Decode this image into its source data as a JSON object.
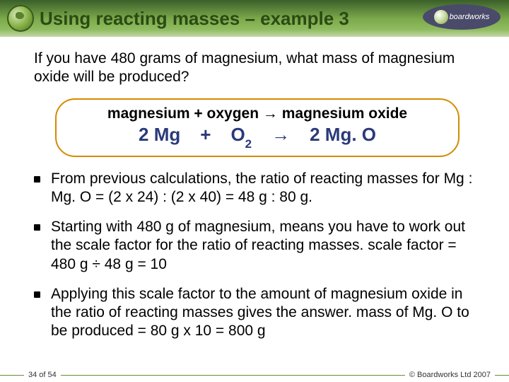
{
  "header": {
    "title": "Using reacting masses – example 3",
    "brand": "boardworks"
  },
  "question": "If you have 480 grams of magnesium, what mass of magnesium oxide will be produced?",
  "equation": {
    "word": "magnesium + oxygen → magnesium oxide",
    "formula_parts": {
      "mg_coef": "2",
      "mg": "Mg",
      "plus": "+",
      "o": "O",
      "o_sub": "2",
      "arrow": "→",
      "mgo_coef": "2",
      "mgo": "Mg. O"
    }
  },
  "bullets": [
    "From previous calculations, the ratio of reacting masses for Mg : Mg. O = (2 x 24) : (2 x 40) = 48 g : 80 g.",
    "Starting with 480 g of magnesium, means you have to work out the scale factor for the ratio of reacting masses. scale factor =  480 g ÷ 48 g = 10",
    "Applying this scale factor to the amount of magnesium oxide in the ratio of reacting masses gives the answer. mass of Mg. O to be produced = 80 g x 10 = 800 g"
  ],
  "footer": {
    "page": "34 of 54",
    "copyright": "© Boardworks Ltd 2007"
  },
  "colors": {
    "title_color": "#2b4a14",
    "formula_color": "#2a3a7a",
    "box_border": "#d68a00"
  }
}
